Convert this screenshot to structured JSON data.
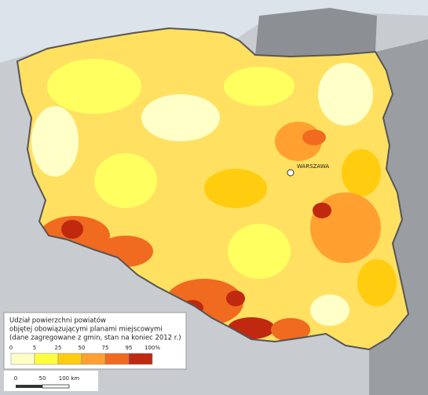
{
  "map": {
    "city_label": "WARSZAWA",
    "legend": {
      "title": [
        "Udział powierzchni powiatów",
        "objętej obowiązującymi planami miejscowymi",
        "(dane zagregowane z gmin, stan na koniec 2012 r.)"
      ],
      "ticks": [
        "0",
        "5",
        "25",
        "50",
        "75",
        "95",
        "100%"
      ],
      "colors": [
        "#ffffc8",
        "#ffff40",
        "#ffcc10",
        "#ffa030",
        "#f06a20",
        "#c02810"
      ]
    },
    "scale_bar": {
      "labels": [
        "0",
        "50",
        "100 km"
      ]
    }
  }
}
